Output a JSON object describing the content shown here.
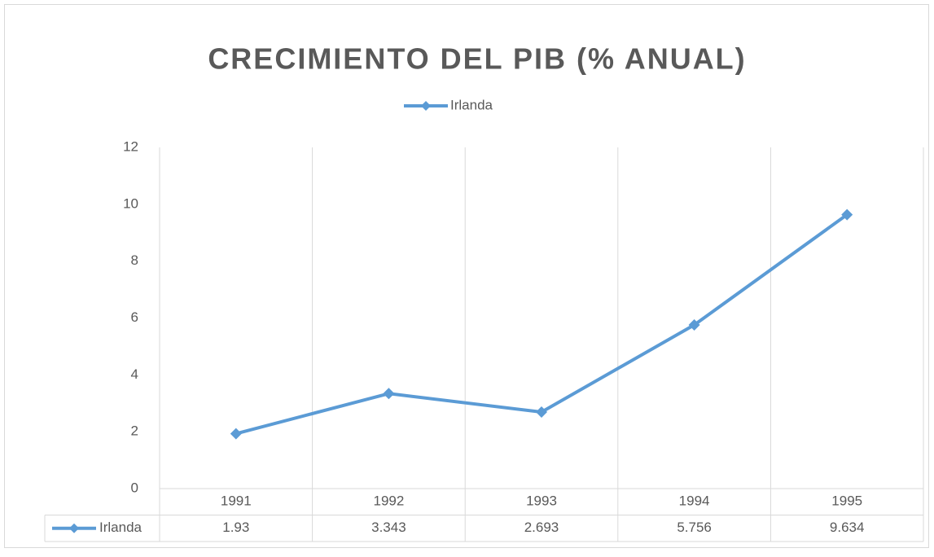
{
  "chart_data": {
    "type": "line",
    "title": "CRECIMIENTO DEL PIB (% ANUAL)",
    "categories": [
      "1991",
      "1992",
      "1993",
      "1994",
      "1995"
    ],
    "series": [
      {
        "name": "Irlanda",
        "color": "#5b9bd5",
        "values": [
          1.93,
          3.343,
          2.693,
          5.756,
          9.634
        ]
      }
    ],
    "ylim": [
      0,
      12
    ],
    "yticks": [
      0,
      2,
      4,
      6,
      8,
      10,
      12
    ],
    "legend": "top",
    "data_table": true
  }
}
